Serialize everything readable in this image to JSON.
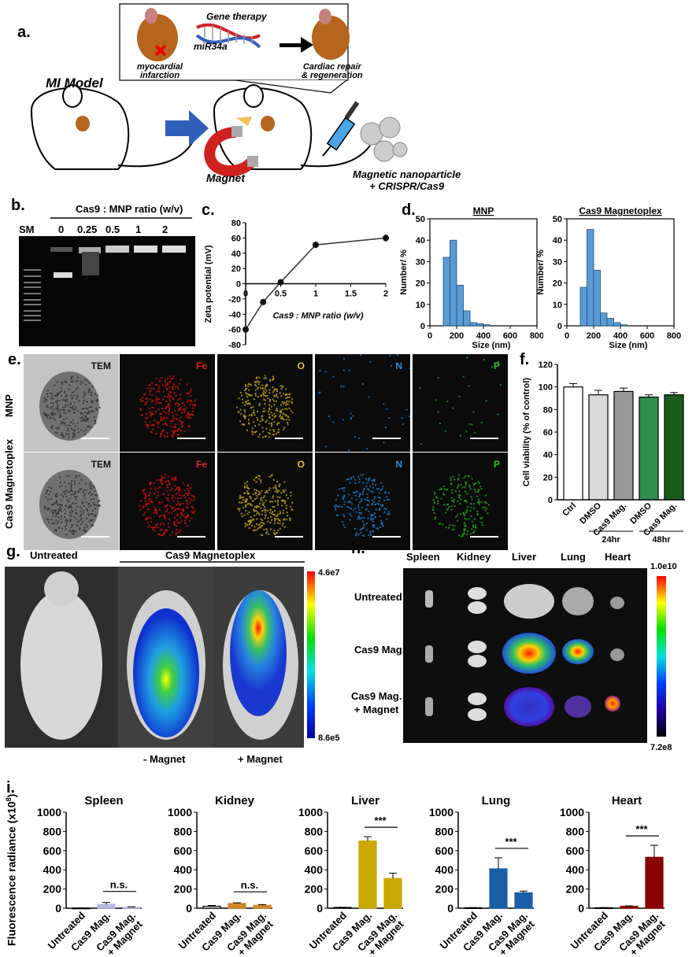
{
  "panel_labels": [
    "a.",
    "b.",
    "c.",
    "d.",
    "e.",
    "f.",
    "g.",
    "h.",
    "i."
  ],
  "a": {
    "mi_model": "MI Model",
    "gene_therapy": "Gene therapy",
    "mir": "miR34a",
    "infarct_line1": "myocardial",
    "infarct_line2": "infarction",
    "repair_line1": "Cardiac repair",
    "repair_line2": "& regeneration",
    "magnet": "Magnet",
    "mnp_line1": "Magnetic nanoparticle",
    "mnp_line2": "+ CRISPR/Cas9"
  },
  "b": {
    "header": "Cas9 : MNP ratio (w/v)",
    "lanes": [
      "SM",
      "0",
      "0.25",
      "0.5",
      "1",
      "2"
    ]
  },
  "c": {
    "chart_data": {
      "type": "line",
      "xlabel": "Cas9 : MNP ratio (w/v)",
      "ylabel": "Zeta potential (mV)",
      "x": [
        0,
        0.25,
        0.5,
        1,
        2
      ],
      "y": [
        -60,
        -24,
        2,
        51,
        60
      ],
      "xlim": [
        0,
        2
      ],
      "ylim": [
        -80,
        80
      ],
      "xticks": [
        "0",
        "0.5",
        "1",
        "1.5",
        "2"
      ],
      "yticks": [
        "80",
        "60",
        "40",
        "20",
        "0",
        "-20",
        "-40",
        "-60",
        "-80"
      ]
    }
  },
  "d": {
    "chart_data": [
      {
        "type": "bar",
        "title": "MNP",
        "xlabel": "Size (nm)",
        "ylabel": "Number/ %",
        "x": [
          150,
          200,
          250,
          300,
          350,
          400,
          450,
          500,
          550,
          600,
          650,
          700
        ],
        "values": [
          32,
          40,
          19,
          7,
          1.5,
          1,
          0.5,
          0,
          0,
          0,
          0,
          0
        ],
        "xlim": [
          0,
          800
        ],
        "ylim": [
          0,
          50
        ],
        "xticks": [
          "0",
          "200",
          "400",
          "600",
          "800"
        ],
        "yticks": [
          "0",
          "10",
          "20",
          "30",
          "40",
          "50"
        ]
      },
      {
        "type": "bar",
        "title": "Cas9 Magnetoplex",
        "xlabel": "Size (nm)",
        "ylabel": "Number/ %",
        "x": [
          150,
          200,
          250,
          300,
          350,
          400,
          450,
          500
        ],
        "values": [
          18,
          45,
          26,
          6,
          3.5,
          1.5,
          0.5,
          0
        ],
        "xlim": [
          0,
          800
        ],
        "ylim": [
          0,
          50
        ],
        "xticks": [
          "0",
          "200",
          "400",
          "600",
          "800"
        ],
        "yticks": [
          "0",
          "10",
          "20",
          "30",
          "40",
          "50"
        ]
      }
    ]
  },
  "e": {
    "rows": [
      "MNP",
      "Cas9 Magnetoplex"
    ],
    "channels": [
      "TEM",
      "Fe",
      "O",
      "N",
      "P"
    ],
    "channel_colors": [
      "#111111",
      "#e0201e",
      "#e0c020",
      "#2a8ee0",
      "#2ec02e"
    ]
  },
  "f": {
    "chart_data": {
      "type": "bar",
      "ylabel": "Cell viability (% of control)",
      "categories": [
        "Ctrl",
        "DMSO",
        "Cas9 Mag.",
        "DMSO",
        "Cas9 Mag."
      ],
      "values": [
        100,
        93,
        96,
        91,
        93
      ],
      "errors": [
        3,
        4,
        3,
        2,
        2
      ],
      "colors": [
        "#ffffff",
        "#d9d9d9",
        "#999999",
        "#2f8f4f",
        "#1a5c1a"
      ],
      "groups": [
        {
          "label": "24hr"
        },
        {
          "label": "48hr"
        }
      ],
      "ylim": [
        0,
        120
      ],
      "yticks": [
        "0",
        "20",
        "40",
        "60",
        "80",
        "100",
        "120"
      ]
    }
  },
  "g": {
    "untreated": "Untreated",
    "cas9": "Cas9 Magnetoplex",
    "minus_magnet": "- Magnet",
    "plus_magnet": "+ Magnet",
    "scale_max": "4.6e7",
    "scale_min": "8.6e5"
  },
  "h": {
    "organs": [
      "Spleen",
      "Kidney",
      "Liver",
      "Lung",
      "Heart"
    ],
    "rows": [
      "Untreated",
      "Cas9 Mag.",
      "Cas9 Mag.",
      "+ Magnet"
    ],
    "scale_max": "1.0e10",
    "scale_min": "7.2e8"
  },
  "i": {
    "ylabel": "Fluorescence radiance (x10",
    "ylabel_sup": "8",
    "ylabel_end": ")",
    "categories": [
      "Untreated",
      "Cas9 Mag.",
      "Cas9 Mag.",
      "+ Magnet"
    ],
    "chart_data": [
      {
        "type": "bar",
        "title": "Spleen",
        "values": [
          2,
          40,
          10
        ],
        "errors": [
          1,
          20,
          5
        ],
        "sig": "n.s.",
        "color": "#b8b8e6",
        "ylim": [
          0,
          1000
        ],
        "yticks": [
          "0",
          "200",
          "400",
          "600",
          "800",
          "1000"
        ]
      },
      {
        "type": "bar",
        "title": "Kidney",
        "values": [
          20,
          50,
          30
        ],
        "errors": [
          8,
          6,
          8
        ],
        "sig": "n.s.",
        "color": "#d4862a",
        "ylim": [
          0,
          1000
        ],
        "yticks": [
          "0",
          "200",
          "400",
          "600",
          "800",
          "1000"
        ]
      },
      {
        "type": "bar",
        "title": "Liver",
        "values": [
          8,
          700,
          310
        ],
        "errors": [
          2,
          45,
          55
        ],
        "sig": "***",
        "color": "#c9a800",
        "ylim": [
          0,
          1000
        ],
        "yticks": [
          "0",
          "200",
          "400",
          "600",
          "800",
          "1000"
        ]
      },
      {
        "type": "bar",
        "title": "Lung",
        "values": [
          5,
          410,
          160
        ],
        "errors": [
          2,
          115,
          18
        ],
        "sig": "***",
        "color": "#1a5ea8",
        "ylim": [
          0,
          1000
        ],
        "yticks": [
          "0",
          "200",
          "400",
          "600",
          "800",
          "1000"
        ]
      },
      {
        "type": "bar",
        "title": "Heart",
        "values": [
          5,
          20,
          530
        ],
        "errors": [
          2,
          4,
          125
        ],
        "sig": "***",
        "color": "#8b0000",
        "ylim": [
          0,
          1000
        ],
        "yticks": [
          "0",
          "200",
          "400",
          "600",
          "800",
          "1000"
        ]
      }
    ]
  }
}
